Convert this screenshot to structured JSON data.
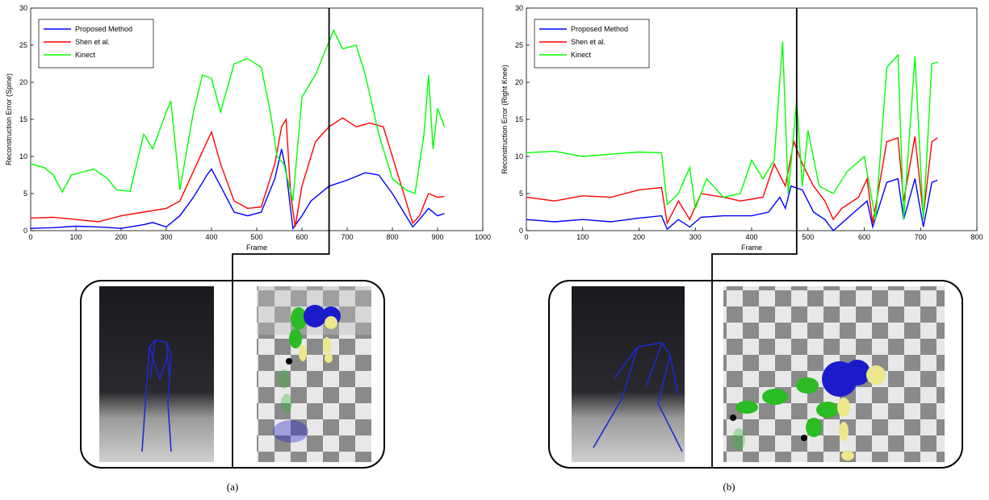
{
  "chart_data": [
    {
      "type": "line",
      "xlabel": "Frame",
      "ylabel": "Reconstruction Error (Spine)",
      "xlim": [
        0,
        1000
      ],
      "xticks": [
        0,
        100,
        200,
        300,
        400,
        500,
        600,
        700,
        800,
        900,
        1000
      ],
      "ylim": [
        0,
        30
      ],
      "yticks": [
        0,
        5,
        10,
        15,
        20,
        25,
        30
      ],
      "legend": "upper left",
      "highlight_frame": 660,
      "series": [
        {
          "name": "Proposed Method",
          "color": "#0000ff",
          "x": [
            0,
            50,
            100,
            150,
            200,
            250,
            270,
            300,
            330,
            360,
            390,
            400,
            420,
            450,
            480,
            510,
            540,
            555,
            565,
            580,
            600,
            620,
            660,
            700,
            740,
            770,
            800,
            830,
            845,
            860,
            880,
            900,
            915
          ],
          "values": [
            0.3,
            0.4,
            0.6,
            0.5,
            0.3,
            0.8,
            1.1,
            0.5,
            2,
            4.5,
            7.5,
            8.3,
            6,
            2.5,
            2,
            2.5,
            7,
            11,
            8,
            0.3,
            2,
            4,
            6,
            6.8,
            7.8,
            7.5,
            5,
            2,
            0.5,
            1.5,
            3,
            2,
            2.3
          ]
        },
        {
          "name": "Shen et al.",
          "color": "#ff0000",
          "x": [
            0,
            50,
            100,
            150,
            200,
            250,
            300,
            330,
            360,
            390,
            400,
            420,
            450,
            480,
            510,
            540,
            555,
            565,
            575,
            585,
            600,
            630,
            660,
            690,
            720,
            750,
            780,
            800,
            830,
            845,
            860,
            880,
            900,
            915
          ],
          "values": [
            1.7,
            1.8,
            1.5,
            1.2,
            2,
            2.5,
            3,
            4,
            8,
            12,
            13.3,
            9,
            4,
            3,
            3.2,
            9,
            14,
            15,
            5,
            0.5,
            6,
            12,
            14,
            15.2,
            14,
            14.5,
            14,
            10,
            4,
            1,
            2,
            5,
            4.5,
            4.6
          ]
        },
        {
          "name": "Kinect",
          "color": "#00ff00",
          "x": [
            0,
            30,
            50,
            70,
            90,
            140,
            170,
            190,
            220,
            250,
            270,
            300,
            310,
            330,
            360,
            380,
            400,
            420,
            450,
            480,
            510,
            530,
            545,
            560,
            580,
            600,
            630,
            660,
            670,
            690,
            720,
            740,
            770,
            800,
            830,
            850,
            870,
            880,
            890,
            900,
            915
          ],
          "values": [
            9,
            8.5,
            7.5,
            5.2,
            7.5,
            8.3,
            7,
            5.5,
            5.3,
            13,
            11,
            16,
            17.5,
            5.5,
            16,
            21,
            20.5,
            16,
            22.5,
            23.2,
            22,
            16,
            10,
            9,
            4,
            18,
            21,
            25.5,
            27,
            24.5,
            25,
            21,
            13,
            7,
            5.5,
            5,
            13,
            21,
            11,
            16.5,
            14
          ]
        }
      ]
    },
    {
      "type": "line",
      "xlabel": "Frame",
      "ylabel": "Reconstruction Error (Right Knee)",
      "xlim": [
        0,
        800
      ],
      "xticks": [
        0,
        100,
        200,
        300,
        400,
        500,
        600,
        700,
        800
      ],
      "ylim": [
        0,
        30
      ],
      "yticks": [
        0,
        5,
        10,
        15,
        20,
        25,
        30
      ],
      "legend": "upper left",
      "highlight_frame": 480,
      "series": [
        {
          "name": "Proposed Method",
          "color": "#0000ff",
          "x": [
            0,
            50,
            100,
            150,
            200,
            240,
            250,
            270,
            290,
            310,
            350,
            400,
            430,
            450,
            460,
            470,
            490,
            510,
            530,
            545,
            560,
            590,
            605,
            615,
            640,
            660,
            670,
            690,
            705,
            720,
            730
          ],
          "values": [
            1.5,
            1.2,
            1.5,
            1.2,
            1.7,
            2,
            0.2,
            1.5,
            0.5,
            1.8,
            2,
            2,
            2.5,
            4.5,
            3,
            6,
            5.5,
            2.5,
            1.5,
            0,
            1,
            3,
            4,
            0.5,
            6.5,
            7,
            1.5,
            7,
            0.5,
            6.5,
            6.8
          ]
        },
        {
          "name": "Shen et al.",
          "color": "#ff0000",
          "x": [
            0,
            50,
            100,
            150,
            200,
            240,
            250,
            270,
            290,
            310,
            350,
            380,
            420,
            440,
            460,
            475,
            490,
            510,
            530,
            545,
            560,
            590,
            605,
            615,
            640,
            660,
            670,
            690,
            705,
            720,
            730
          ],
          "values": [
            4.5,
            4,
            4.7,
            4.5,
            5.5,
            5.8,
            1,
            4,
            1.5,
            5,
            4.5,
            4,
            4.5,
            9,
            6,
            12,
            9,
            6,
            4,
            1.5,
            3,
            4.5,
            7,
            1,
            12,
            12.5,
            4,
            12.7,
            2,
            12,
            12.5
          ]
        },
        {
          "name": "Kinect",
          "color": "#00ff00",
          "x": [
            0,
            50,
            100,
            150,
            200,
            240,
            250,
            270,
            290,
            300,
            320,
            350,
            380,
            400,
            420,
            440,
            455,
            465,
            480,
            490,
            500,
            520,
            545,
            570,
            600,
            620,
            640,
            660,
            670,
            690,
            705,
            720,
            730
          ],
          "values": [
            10.5,
            10.7,
            10,
            10.3,
            10.6,
            10.5,
            3.5,
            5,
            8.5,
            3,
            7,
            4.5,
            5,
            9.5,
            7,
            9.5,
            25.5,
            5,
            17.5,
            6,
            13.5,
            6,
            5,
            8,
            10,
            1.5,
            22,
            23.7,
            1.5,
            23.5,
            1.5,
            22.5,
            22.7
          ]
        }
      ]
    }
  ],
  "captions": [
    "(a)",
    "(b)"
  ]
}
